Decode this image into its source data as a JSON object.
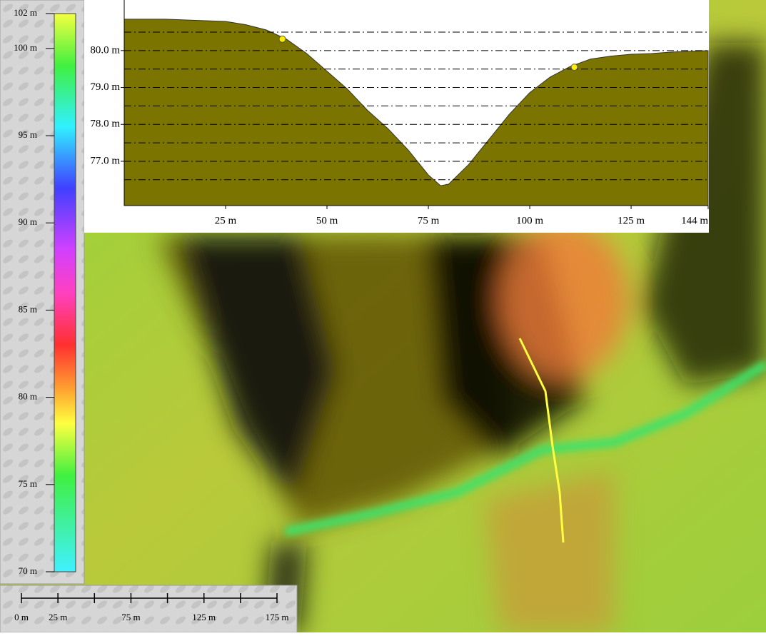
{
  "chart_data": {
    "type": "area",
    "x": [
      0,
      10,
      20,
      25,
      30,
      35,
      40,
      45,
      50,
      55,
      60,
      65,
      70,
      75,
      78,
      80,
      85,
      90,
      95,
      100,
      105,
      110,
      115,
      120,
      125,
      130,
      135,
      144
    ],
    "values": [
      80.85,
      80.85,
      80.81,
      80.79,
      80.7,
      80.56,
      80.31,
      79.92,
      79.44,
      78.96,
      78.38,
      77.89,
      77.31,
      76.63,
      76.34,
      76.38,
      76.92,
      77.6,
      78.28,
      78.86,
      79.28,
      79.57,
      79.77,
      79.85,
      79.9,
      79.92,
      79.96,
      80.0
    ],
    "color": "#7b7400",
    "xlim": [
      0,
      144
    ],
    "xticks": [
      {
        "value": 25,
        "label": "25 m"
      },
      {
        "value": 50,
        "label": "50 m"
      },
      {
        "value": 75,
        "label": "75 m"
      },
      {
        "value": 100,
        "label": "100 m"
      },
      {
        "value": 125,
        "label": "125 m"
      },
      {
        "value": 144,
        "label": "144 m"
      }
    ],
    "ylim": [
      75.8,
      81.37
    ],
    "yticks": [
      {
        "value": 77,
        "label": "77.0 m"
      },
      {
        "value": 78,
        "label": "78.0 m"
      },
      {
        "value": 79,
        "label": "79.0 m"
      },
      {
        "value": 80,
        "label": "80.0 m"
      }
    ],
    "ygrid": [
      76.5,
      77,
      77.5,
      78,
      78.5,
      79,
      79.5,
      80,
      80.5
    ],
    "markers": {
      "x": [
        39,
        111
      ],
      "values": [
        80.31,
        79.55
      ],
      "color": "#ffee00"
    }
  },
  "color_scale": {
    "lim": [
      70,
      102
    ],
    "ticks": [
      {
        "value": 102,
        "label": "102 m"
      },
      {
        "value": 100,
        "label": "100 m"
      },
      {
        "value": 95,
        "label": "95 m"
      },
      {
        "value": 90,
        "label": "90 m"
      },
      {
        "value": 85,
        "label": "85 m"
      },
      {
        "value": 80,
        "label": "80 m"
      },
      {
        "value": 75,
        "label": "75 m"
      },
      {
        "value": 70,
        "label": "70 m"
      }
    ],
    "stops": [
      {
        "value": 102,
        "color": "#f4ff40"
      },
      {
        "value": 99,
        "color": "#40f040"
      },
      {
        "value": 95.5,
        "color": "#30f0ff"
      },
      {
        "value": 92,
        "color": "#4040ff"
      },
      {
        "value": 88.5,
        "color": "#d040ff"
      },
      {
        "value": 86,
        "color": "#ff40c0"
      },
      {
        "value": 83,
        "color": "#ff3030"
      },
      {
        "value": 80.5,
        "color": "#ffa030"
      },
      {
        "value": 78.5,
        "color": "#ffff40"
      },
      {
        "value": 75.5,
        "color": "#40f040"
      },
      {
        "value": 70,
        "color": "#40f0ff"
      }
    ]
  },
  "scale_bar": {
    "lim": [
      0,
      175
    ],
    "ticks": [
      0,
      25,
      50,
      75,
      100,
      125,
      150,
      175
    ],
    "labels": [
      {
        "value": 0,
        "label": "0 m"
      },
      {
        "value": 25,
        "label": "25 m"
      },
      {
        "value": 75,
        "label": "75 m"
      },
      {
        "value": 125,
        "label": "125 m"
      },
      {
        "value": 175,
        "label": "175 m"
      }
    ]
  }
}
